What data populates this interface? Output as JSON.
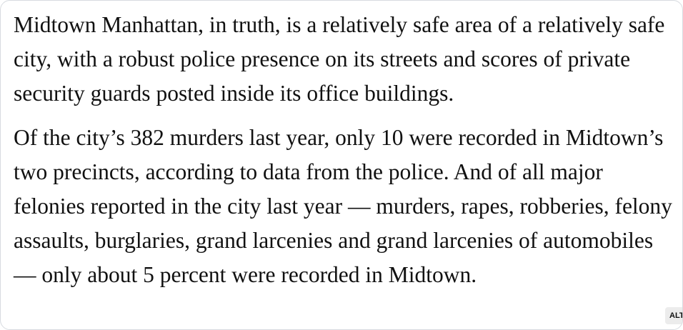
{
  "article": {
    "paragraphs": [
      "Midtown Manhattan, in truth, is a relatively safe area of a relatively safe city, with a robust police presence on its streets and scores of private security guards posted inside its office buildings.",
      "Of the city’s 382 murders last year, only 10 were recorded in Midtown’s two precincts, according to data from the police. And of all major felonies reported in the city last year — murders, rapes, robberies, felony assaults, burglaries, grand larcenies and grand larcenies of automobiles — only about 5 percent were recorded in Midtown."
    ]
  },
  "badge": {
    "label": "ALT"
  }
}
